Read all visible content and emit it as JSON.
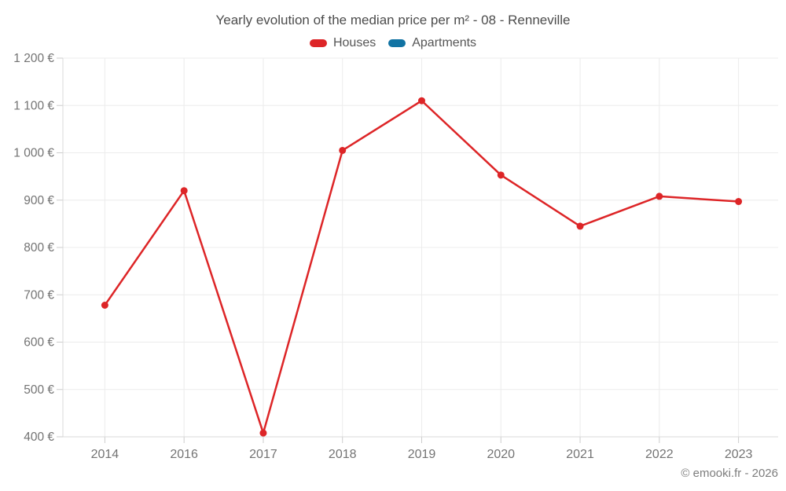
{
  "chart_data": {
    "type": "line",
    "title": "Yearly evolution of the median price per m² - 08 - Renneville",
    "xlabel": "",
    "ylabel": "",
    "categories": [
      "2014",
      "2016",
      "2017",
      "2018",
      "2019",
      "2020",
      "2021",
      "2022",
      "2023"
    ],
    "series": [
      {
        "name": "Houses",
        "color": "#dd2527",
        "values": [
          678,
          920,
          408,
          1005,
          1110,
          953,
          845,
          908,
          897
        ]
      },
      {
        "name": "Apartments",
        "color": "#1173a3",
        "values": []
      }
    ],
    "ylim": [
      400,
      1200
    ],
    "ytick_step": 100,
    "ytick_labels": [
      "400 €",
      "500 €",
      "600 €",
      "700 €",
      "800 €",
      "900 €",
      "1 000 €",
      "1 100 €",
      "1 200 €"
    ],
    "grid": true,
    "legend_position": "top",
    "currency": "€"
  },
  "footer": {
    "copyright": "© emooki.fr - 2026"
  },
  "colors": {
    "grid": "#ececec",
    "axis": "#d9d9d9",
    "tick": "#cccccc",
    "axis_label": "#737373"
  }
}
